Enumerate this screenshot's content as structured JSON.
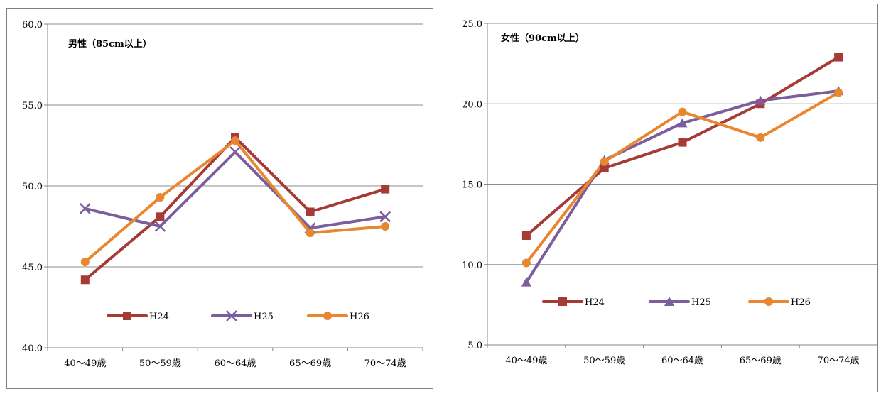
{
  "chart_data": [
    {
      "type": "line",
      "title": "男性（85cm以上）",
      "categories": [
        "40～49歳",
        "50～59歳",
        "60～64歳",
        "65～69歳",
        "70～74歳"
      ],
      "ylim": [
        40.0,
        60.0
      ],
      "yticks": [
        "40.0",
        "45.0",
        "50.0",
        "55.0",
        "60.0"
      ],
      "grid": true,
      "legend_position": "bottom-inside",
      "series": [
        {
          "name": "H24",
          "color": "#a63a37",
          "marker": "square",
          "values": [
            44.2,
            48.1,
            53.0,
            48.4,
            49.8
          ]
        },
        {
          "name": "H25",
          "color": "#7c5e9c",
          "marker": "x",
          "values": [
            48.6,
            47.5,
            52.1,
            47.4,
            48.1
          ]
        },
        {
          "name": "H26",
          "color": "#e8872f",
          "marker": "circle",
          "values": [
            45.3,
            49.3,
            52.8,
            47.1,
            47.5
          ]
        }
      ]
    },
    {
      "type": "line",
      "title": "女性（90cm以上）",
      "categories": [
        "40～49歳",
        "50～59歳",
        "60～64歳",
        "65～69歳",
        "70～74歳"
      ],
      "ylim": [
        5.0,
        25.0
      ],
      "yticks": [
        "5.0",
        "10.0",
        "15.0",
        "20.0",
        "25.0"
      ],
      "grid": true,
      "legend_position": "bottom-inside",
      "series": [
        {
          "name": "H24",
          "color": "#a63a37",
          "marker": "square",
          "values": [
            11.8,
            16.0,
            17.6,
            20.0,
            22.9
          ]
        },
        {
          "name": "H25",
          "color": "#7c5e9c",
          "marker": "triangle",
          "values": [
            8.9,
            16.5,
            18.8,
            20.2,
            20.8
          ]
        },
        {
          "name": "H26",
          "color": "#e8872f",
          "marker": "circle",
          "values": [
            10.1,
            16.4,
            19.5,
            17.9,
            20.7
          ]
        }
      ]
    }
  ]
}
